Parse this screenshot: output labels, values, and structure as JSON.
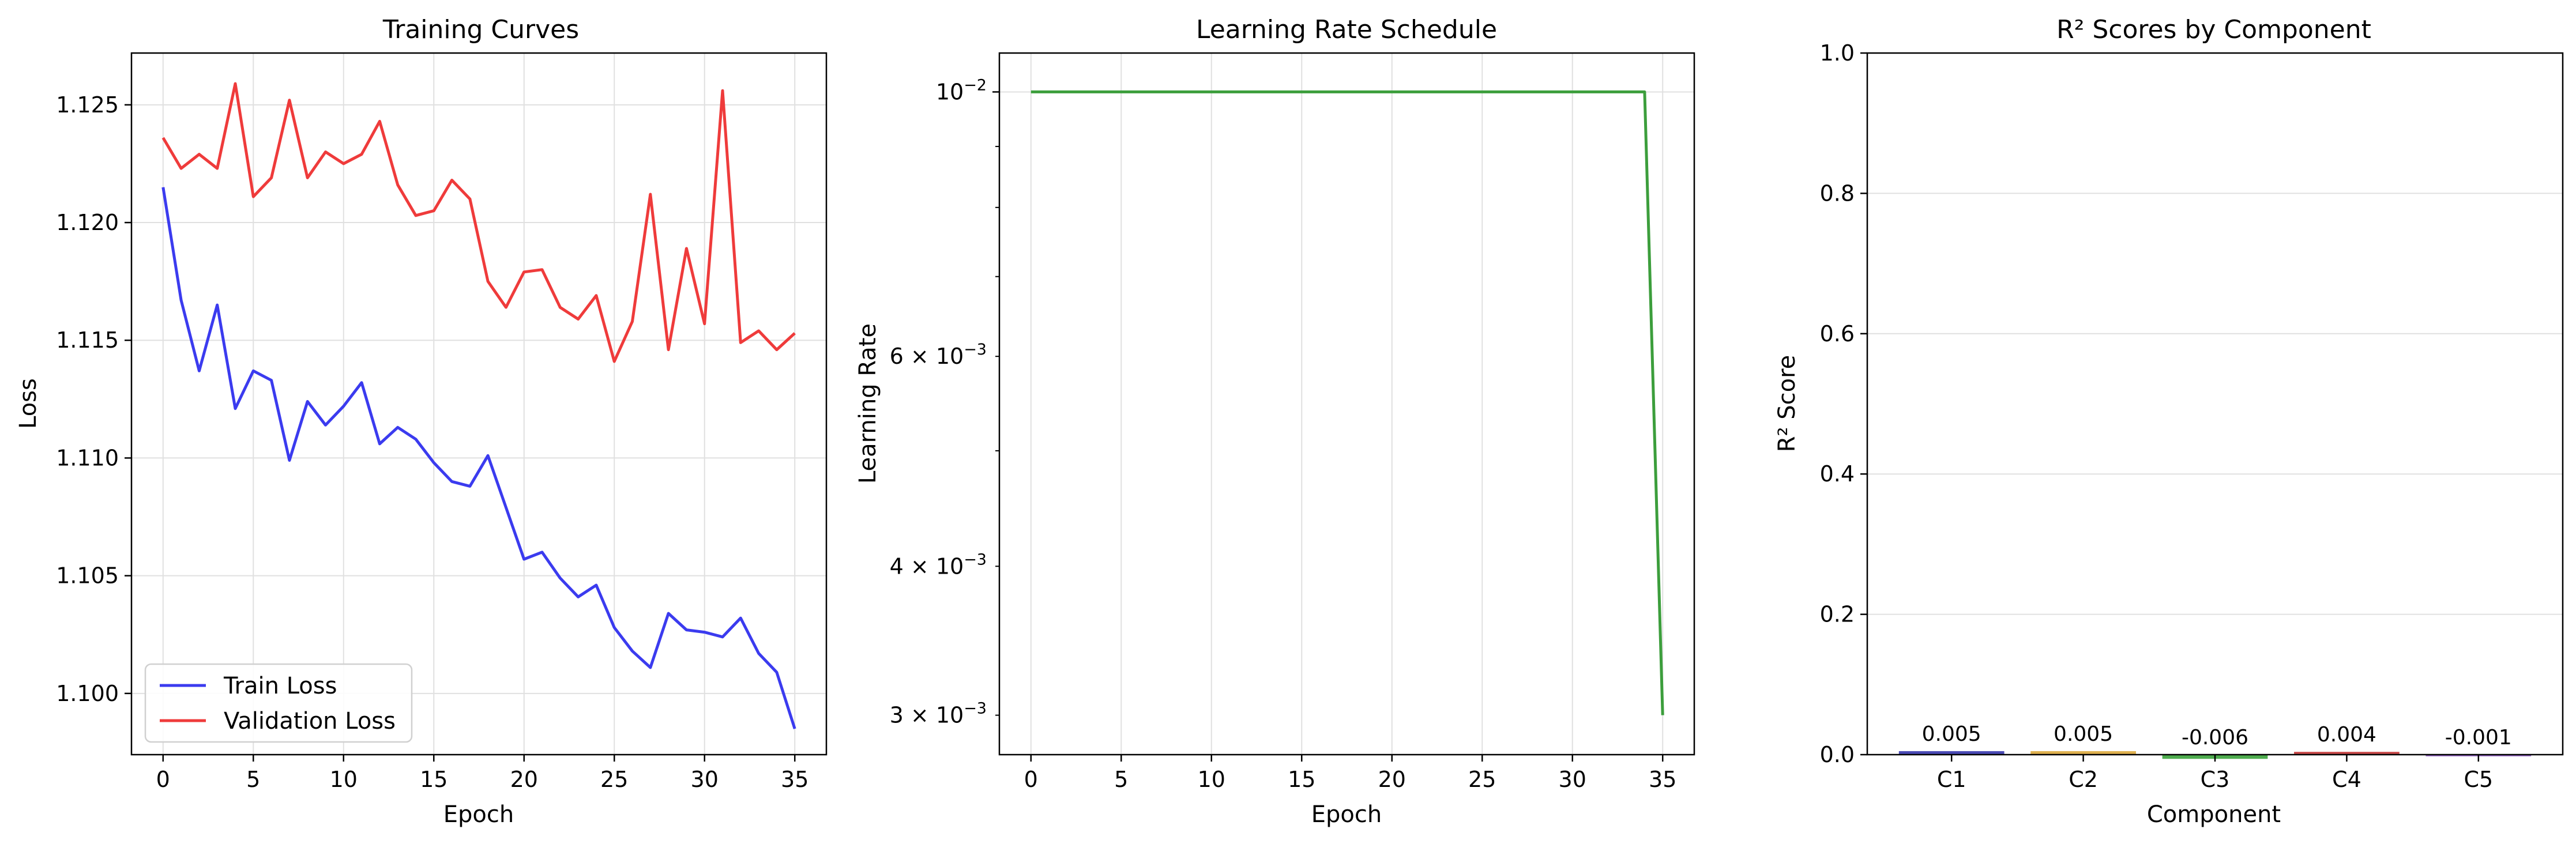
{
  "chart_data": [
    {
      "type": "line",
      "title": "Training Curves",
      "xlabel": "Epoch",
      "ylabel": "Loss",
      "xlim": [
        -1.75,
        36.75
      ],
      "ylim": [
        1.0974,
        1.1272
      ],
      "xticks": [
        0,
        5,
        10,
        15,
        20,
        25,
        30,
        35
      ],
      "yticks": [
        1.1,
        1.105,
        1.11,
        1.115,
        1.12,
        1.125
      ],
      "ytick_labels": [
        "1.100",
        "1.105",
        "1.110",
        "1.115",
        "1.120",
        "1.125"
      ],
      "grid": true,
      "legend_position": "lower-left",
      "x": [
        0,
        1,
        2,
        3,
        4,
        5,
        6,
        7,
        8,
        9,
        10,
        11,
        12,
        13,
        14,
        15,
        16,
        17,
        18,
        19,
        20,
        21,
        22,
        23,
        24,
        25,
        26,
        27,
        28,
        29,
        30,
        31,
        32,
        33,
        34,
        35
      ],
      "series": [
        {
          "name": "Train Loss",
          "color": "#3b3bef",
          "values": [
            1.1215,
            1.1167,
            1.1137,
            1.1165,
            1.1121,
            1.1137,
            1.1133,
            1.1099,
            1.1124,
            1.1114,
            1.1122,
            1.1132,
            1.1106,
            1.1113,
            1.1108,
            1.1098,
            1.109,
            1.1088,
            1.1101,
            1.1079,
            1.1057,
            1.106,
            1.1049,
            1.1041,
            1.1046,
            1.1028,
            1.1018,
            1.1011,
            1.1034,
            1.1027,
            1.1026,
            1.1024,
            1.1032,
            1.1017,
            1.1009,
            1.0985
          ]
        },
        {
          "name": "Validation Loss",
          "color": "#ef3b3b",
          "values": [
            1.1236,
            1.1223,
            1.1229,
            1.1223,
            1.1259,
            1.1211,
            1.1219,
            1.1252,
            1.1219,
            1.123,
            1.1225,
            1.1229,
            1.1243,
            1.1216,
            1.1203,
            1.1205,
            1.1218,
            1.121,
            1.1175,
            1.1164,
            1.1179,
            1.118,
            1.1164,
            1.1159,
            1.1169,
            1.1141,
            1.1158,
            1.1212,
            1.1146,
            1.1189,
            1.1157,
            1.1256,
            1.1149,
            1.1154,
            1.1146,
            1.1153
          ]
        }
      ]
    },
    {
      "type": "line",
      "title": "Learning Rate Schedule",
      "xlabel": "Epoch",
      "ylabel": "Learning Rate",
      "yscale": "log",
      "xlim": [
        -1.75,
        36.75
      ],
      "ylim": [
        0.00278,
        0.01078
      ],
      "xticks": [
        0,
        5,
        10,
        15,
        20,
        25,
        30,
        35
      ],
      "yticks_major": [
        {
          "value": 0.01,
          "base": "10",
          "exp": "−2",
          "coef": ""
        }
      ],
      "yticks_minor": [
        {
          "value": 0.003,
          "base": "10",
          "exp": "−3",
          "coef": "3 × "
        },
        {
          "value": 0.004,
          "base": "10",
          "exp": "−3",
          "coef": "4 × "
        },
        {
          "value": 0.006,
          "base": "10",
          "exp": "−3",
          "coef": "6 × "
        }
      ],
      "yticks_minor_unlabeled": [
        0.005,
        0.007,
        0.008,
        0.009
      ],
      "grid": true,
      "x": [
        0,
        1,
        2,
        3,
        4,
        5,
        6,
        7,
        8,
        9,
        10,
        11,
        12,
        13,
        14,
        15,
        16,
        17,
        18,
        19,
        20,
        21,
        22,
        23,
        24,
        25,
        26,
        27,
        28,
        29,
        30,
        31,
        32,
        33,
        34,
        35
      ],
      "series": [
        {
          "color": "#3c9e3c",
          "values": [
            0.01,
            0.01,
            0.01,
            0.01,
            0.01,
            0.01,
            0.01,
            0.01,
            0.01,
            0.01,
            0.01,
            0.01,
            0.01,
            0.01,
            0.01,
            0.01,
            0.01,
            0.01,
            0.01,
            0.01,
            0.01,
            0.01,
            0.01,
            0.01,
            0.01,
            0.01,
            0.01,
            0.01,
            0.01,
            0.01,
            0.01,
            0.01,
            0.01,
            0.01,
            0.01,
            0.003
          ]
        }
      ]
    },
    {
      "type": "bar",
      "title": "R² Scores by Component",
      "xlabel": "Component",
      "ylabel": "R² Score",
      "ylim": [
        0,
        1.0
      ],
      "yticks": [
        0,
        0.2,
        0.4,
        0.6,
        0.8,
        1.0
      ],
      "ytick_labels": [
        "0.0",
        "0.2",
        "0.4",
        "0.6",
        "0.8",
        "1.0"
      ],
      "grid": true,
      "categories": [
        "C1",
        "C2",
        "C3",
        "C4",
        "C5"
      ],
      "values": [
        0.005,
        0.005,
        -0.006,
        0.004,
        -0.001
      ],
      "value_labels": [
        "0.005",
        "0.005",
        "-0.006",
        "0.004",
        "-0.001"
      ],
      "colors": [
        "#2a2aa8",
        "#d9a330",
        "#2f9e2f",
        "#c02a2a",
        "#8a55c0"
      ]
    }
  ]
}
